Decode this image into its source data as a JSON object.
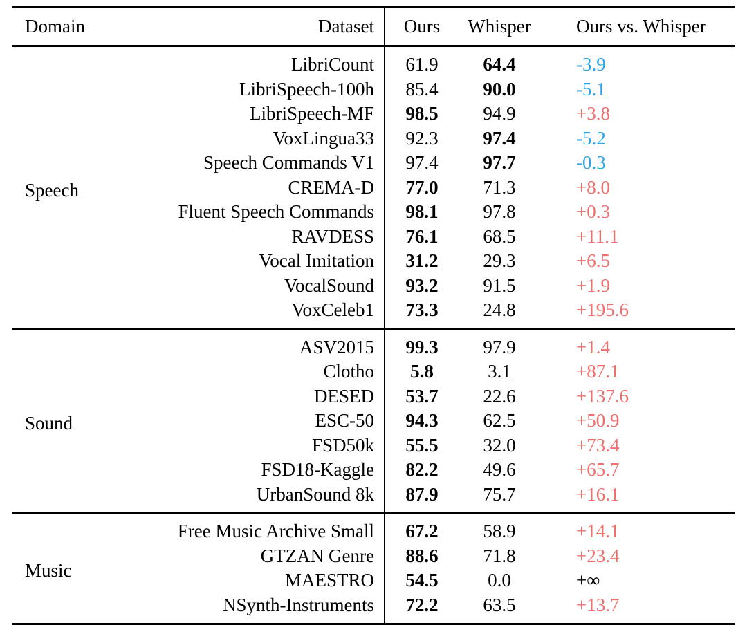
{
  "table": {
    "headers": {
      "domain": "Domain",
      "dataset": "Dataset",
      "ours": "Ours",
      "whisper": "Whisper",
      "diff": "Ours vs. Whisper"
    },
    "colors": {
      "positive_diff": "#ef6e6e",
      "negative_diff": "#2ba3e4",
      "neutral_diff": "#000000",
      "text": "#000000",
      "background": "#ffffff"
    },
    "sections": [
      {
        "domain": "Speech",
        "rows": [
          {
            "dataset": "LibriCount",
            "ours": "61.9",
            "whisper": "64.4",
            "bold": "whisper",
            "diff": "-3.9",
            "diff_tone": "negative"
          },
          {
            "dataset": "LibriSpeech-100h",
            "ours": "85.4",
            "whisper": "90.0",
            "bold": "whisper",
            "diff": "-5.1",
            "diff_tone": "negative"
          },
          {
            "dataset": "LibriSpeech-MF",
            "ours": "98.5",
            "whisper": "94.9",
            "bold": "ours",
            "diff": "+3.8",
            "diff_tone": "positive"
          },
          {
            "dataset": "VoxLingua33",
            "ours": "92.3",
            "whisper": "97.4",
            "bold": "whisper",
            "diff": "-5.2",
            "diff_tone": "negative"
          },
          {
            "dataset": "Speech Commands V1",
            "ours": "97.4",
            "whisper": "97.7",
            "bold": "whisper",
            "diff": "-0.3",
            "diff_tone": "negative"
          },
          {
            "dataset": "CREMA-D",
            "ours": "77.0",
            "whisper": "71.3",
            "bold": "ours",
            "diff": "+8.0",
            "diff_tone": "positive"
          },
          {
            "dataset": "Fluent Speech Commands",
            "ours": "98.1",
            "whisper": "97.8",
            "bold": "ours",
            "diff": "+0.3",
            "diff_tone": "positive"
          },
          {
            "dataset": "RAVDESS",
            "ours": "76.1",
            "whisper": "68.5",
            "bold": "ours",
            "diff": "+11.1",
            "diff_tone": "positive"
          },
          {
            "dataset": "Vocal Imitation",
            "ours": "31.2",
            "whisper": "29.3",
            "bold": "ours",
            "diff": "+6.5",
            "diff_tone": "positive"
          },
          {
            "dataset": "VocalSound",
            "ours": "93.2",
            "whisper": "91.5",
            "bold": "ours",
            "diff": "+1.9",
            "diff_tone": "positive"
          },
          {
            "dataset": "VoxCeleb1",
            "ours": "73.3",
            "whisper": "24.8",
            "bold": "ours",
            "diff": "+195.6",
            "diff_tone": "positive"
          }
        ]
      },
      {
        "domain": "Sound",
        "rows": [
          {
            "dataset": "ASV2015",
            "ours": "99.3",
            "whisper": "97.9",
            "bold": "ours",
            "diff": "+1.4",
            "diff_tone": "positive"
          },
          {
            "dataset": "Clotho",
            "ours": "5.8",
            "whisper": "3.1",
            "bold": "ours",
            "diff": "+87.1",
            "diff_tone": "positive"
          },
          {
            "dataset": "DESED",
            "ours": "53.7",
            "whisper": "22.6",
            "bold": "ours",
            "diff": "+137.6",
            "diff_tone": "positive"
          },
          {
            "dataset": "ESC-50",
            "ours": "94.3",
            "whisper": "62.5",
            "bold": "ours",
            "diff": "+50.9",
            "diff_tone": "positive"
          },
          {
            "dataset": "FSD50k",
            "ours": "55.5",
            "whisper": "32.0",
            "bold": "ours",
            "diff": "+73.4",
            "diff_tone": "positive"
          },
          {
            "dataset": "FSD18-Kaggle",
            "ours": "82.2",
            "whisper": "49.6",
            "bold": "ours",
            "diff": "+65.7",
            "diff_tone": "positive"
          },
          {
            "dataset": "UrbanSound 8k",
            "ours": "87.9",
            "whisper": "75.7",
            "bold": "ours",
            "diff": "+16.1",
            "diff_tone": "positive"
          }
        ]
      },
      {
        "domain": "Music",
        "rows": [
          {
            "dataset": "Free Music Archive Small",
            "ours": "67.2",
            "whisper": "58.9",
            "bold": "ours",
            "diff": "+14.1",
            "diff_tone": "positive"
          },
          {
            "dataset": "GTZAN Genre",
            "ours": "88.6",
            "whisper": "71.8",
            "bold": "ours",
            "diff": "+23.4",
            "diff_tone": "positive"
          },
          {
            "dataset": "MAESTRO",
            "ours": "54.5",
            "whisper": "0.0",
            "bold": "ours",
            "diff": "+∞",
            "diff_tone": "neutral"
          },
          {
            "dataset": "NSynth-Instruments",
            "ours": "72.2",
            "whisper": "63.5",
            "bold": "ours",
            "diff": "+13.7",
            "diff_tone": "positive"
          }
        ]
      }
    ]
  }
}
